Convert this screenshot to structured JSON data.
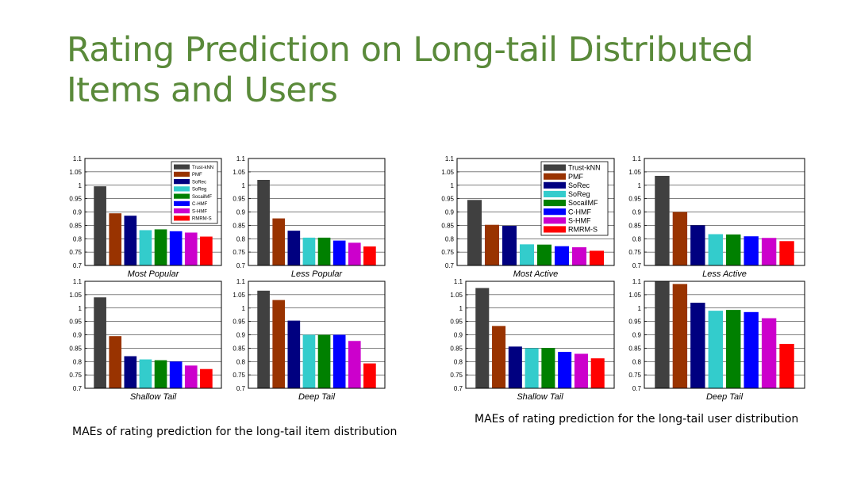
{
  "title": "Rating Prediction on Long-tail Distributed Items and Users",
  "captions": {
    "items": "MAEs of rating prediction for the long-tail item distribution",
    "users": "MAEs of rating prediction for the long-tail user distribution"
  },
  "series_colors": [
    "#404040",
    "#993300",
    "#000080",
    "#33cccc",
    "#008000",
    "#0000ff",
    "#cc00cc",
    "#ff0000"
  ],
  "chart_data": [
    {
      "group": "items",
      "type": "bar",
      "title": "Most Popular",
      "categories": [
        "Trust-kNN",
        "PMF",
        "SoRec",
        "SoReg",
        "SocailMF",
        "C-HMF",
        "S-HMF",
        "RMRM-S"
      ],
      "values": [
        0.996,
        0.895,
        0.886,
        0.832,
        0.835,
        0.828,
        0.823,
        0.808
      ],
      "ylim": [
        0.7,
        1.1
      ],
      "yticks": [
        "0.7",
        "0.75",
        "0.8",
        "0.85",
        "0.9",
        "0.95",
        "1",
        "1.05",
        "1.1"
      ],
      "legend": true,
      "legend_labels": [
        "Trust-kNN",
        "PMF",
        "SoRec",
        "SoReg",
        "SocailMF",
        "C-HMF",
        "S-HMF",
        "RMRM-S"
      ]
    },
    {
      "group": "items",
      "type": "bar",
      "title": "Less Popular",
      "categories": [
        "Trust-kNN",
        "PMF",
        "SoRec",
        "SoReg",
        "SocailMF",
        "C-HMF",
        "S-HMF",
        "RMRM-S"
      ],
      "values": [
        1.02,
        0.876,
        0.83,
        0.804,
        0.804,
        0.793,
        0.785,
        0.771
      ],
      "ylim": [
        0.7,
        1.1
      ],
      "yticks": [
        "0.7",
        "0.75",
        "0.8",
        "0.85",
        "0.9",
        "0.95",
        "1",
        "1.05",
        "1.1"
      ],
      "legend": false
    },
    {
      "group": "items",
      "type": "bar",
      "title": "Shallow Tail",
      "categories": [
        "Trust-kNN",
        "PMF",
        "SoRec",
        "SoReg",
        "SocailMF",
        "C-HMF",
        "S-HMF",
        "RMRM-S"
      ],
      "values": [
        1.04,
        0.895,
        0.82,
        0.808,
        0.805,
        0.8,
        0.785,
        0.772
      ],
      "ylim": [
        0.7,
        1.1
      ],
      "yticks": [
        "0.7",
        "0.75",
        "0.8",
        "0.85",
        "0.9",
        "0.95",
        "1",
        "1.05",
        "1.1"
      ],
      "legend": false
    },
    {
      "group": "items",
      "type": "bar",
      "title": "Deep Tail",
      "categories": [
        "Trust-kNN",
        "PMF",
        "SoRec",
        "SoReg",
        "SocailMF",
        "C-HMF",
        "S-HMF",
        "RMRM-S"
      ],
      "values": [
        1.065,
        1.03,
        0.953,
        0.9,
        0.9,
        0.9,
        0.877,
        0.793
      ],
      "ylim": [
        0.7,
        1.1
      ],
      "yticks": [
        "0.7",
        "0.75",
        "0.8",
        "0.85",
        "0.9",
        "0.95",
        "1",
        "1.05",
        "1.1"
      ],
      "legend": false
    },
    {
      "group": "users",
      "type": "bar",
      "title": "Most Active",
      "categories": [
        "Trust-kNN",
        "PMF",
        "SoRec",
        "SoReg",
        "SocailMF",
        "C-HMF",
        "S-HMF",
        "RMRM-S"
      ],
      "values": [
        0.945,
        0.852,
        0.848,
        0.779,
        0.778,
        0.772,
        0.768,
        0.755
      ],
      "ylim": [
        0.7,
        1.1
      ],
      "yticks": [
        "0.7",
        "0.75",
        "0.8",
        "0.85",
        "0.9",
        "0.95",
        "1",
        "1.05",
        "1.1"
      ],
      "legend": true,
      "legend_labels": [
        "Trust-kNN",
        "PMF",
        "SoRec",
        "SoReg",
        "SocailMF",
        "C-HMF",
        "S-HMF",
        "RMRM-S"
      ]
    },
    {
      "group": "users",
      "type": "bar",
      "title": "Less Active",
      "categories": [
        "Trust-kNN",
        "PMF",
        "SoRec",
        "SoReg",
        "SocailMF",
        "C-HMF",
        "S-HMF",
        "RMRM-S"
      ],
      "values": [
        1.035,
        0.9,
        0.85,
        0.817,
        0.816,
        0.809,
        0.803,
        0.791
      ],
      "ylim": [
        0.7,
        1.1
      ],
      "yticks": [
        "0.7",
        "0.75",
        "0.8",
        "0.85",
        "0.9",
        "0.95",
        "1",
        "1.05",
        "1.1"
      ],
      "legend": false
    },
    {
      "group": "users",
      "type": "bar",
      "title": "Shallow Tail",
      "categories": [
        "Trust-kNN",
        "PMF",
        "SoRec",
        "SoReg",
        "SocailMF",
        "C-HMF",
        "S-HMF",
        "RMRM-S"
      ],
      "values": [
        1.075,
        0.933,
        0.856,
        0.85,
        0.851,
        0.836,
        0.829,
        0.812
      ],
      "ylim": [
        0.7,
        1.1
      ],
      "yticks": [
        "0.7",
        "0.75",
        "0.8",
        "0.85",
        "0.9",
        "0.95",
        "1",
        "1.05",
        "1.1"
      ],
      "legend": false
    },
    {
      "group": "users",
      "type": "bar",
      "title": "Deep Tail",
      "categories": [
        "Trust-kNN",
        "PMF",
        "SoRec",
        "SoReg",
        "SocailMF",
        "C-HMF",
        "S-HMF",
        "RMRM-S"
      ],
      "values": [
        1.1,
        1.09,
        1.02,
        0.99,
        0.993,
        0.985,
        0.962,
        0.866
      ],
      "ylim": [
        0.7,
        1.1
      ],
      "yticks": [
        "0.7",
        "0.75",
        "0.8",
        "0.85",
        "0.9",
        "0.95",
        "1",
        "1.05",
        "1.1"
      ],
      "legend": false
    }
  ]
}
